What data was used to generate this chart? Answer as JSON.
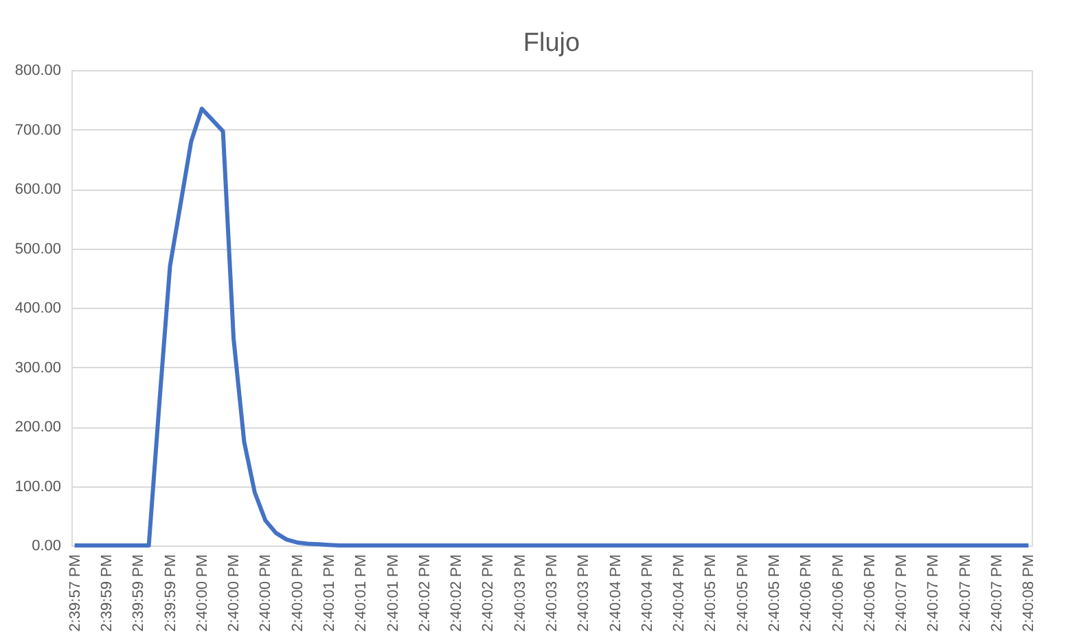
{
  "chart_data": {
    "type": "line",
    "title": "Flujo",
    "categories": [
      "2:39:57 PM",
      null,
      null,
      "2:39:59 PM",
      null,
      null,
      "2:39:59 PM",
      null,
      null,
      "2:39:59 PM",
      null,
      null,
      "2:40:00 PM",
      null,
      null,
      "2:40:00 PM",
      null,
      null,
      "2:40:00 PM",
      null,
      null,
      "2:40:00 PM",
      null,
      null,
      "2:40:01 PM",
      null,
      null,
      "2:40:01 PM",
      null,
      null,
      "2:40:01 PM",
      null,
      null,
      "2:40:02 PM",
      null,
      null,
      "2:40:02 PM",
      null,
      null,
      "2:40:02 PM",
      null,
      null,
      "2:40:03 PM",
      null,
      null,
      "2:40:03 PM",
      null,
      null,
      "2:40:03 PM",
      null,
      null,
      "2:40:04 PM",
      null,
      null,
      "2:40:04 PM",
      null,
      null,
      "2:40:04 PM",
      null,
      null,
      "2:40:05 PM",
      null,
      null,
      "2:40:05 PM",
      null,
      null,
      "2:40:05 PM",
      null,
      null,
      "2:40:06 PM",
      null,
      null,
      "2:40:06 PM",
      null,
      null,
      "2:40:06 PM",
      null,
      null,
      "2:40:07 PM",
      null,
      null,
      "2:40:07 PM",
      null,
      null,
      "2:40:07 PM",
      null,
      null,
      "2:40:07 PM",
      null,
      null,
      "2:40:08 PM"
    ],
    "series": [
      {
        "color": "#4472c4",
        "values": [
          0,
          0,
          0,
          0,
          0,
          0,
          0,
          0,
          240,
          470,
          575,
          680,
          735,
          716,
          697,
          348,
          174,
          89,
          42,
          21,
          10,
          5,
          3,
          2,
          1,
          0,
          0,
          0,
          0,
          0,
          0,
          0,
          0,
          0,
          0,
          0,
          0,
          0,
          0,
          0,
          0,
          0,
          0,
          0,
          0,
          0,
          0,
          0,
          0,
          0,
          0,
          0,
          0,
          0,
          0,
          0,
          0,
          0,
          0,
          0,
          0,
          0,
          0,
          0,
          0,
          0,
          0,
          0,
          0,
          0,
          0,
          0,
          0,
          0,
          0,
          0,
          0,
          0,
          0,
          0,
          0,
          0,
          0,
          0,
          0,
          0,
          0,
          0,
          0,
          0,
          0
        ]
      }
    ],
    "ylim": [
      0,
      800
    ],
    "yticks": [
      {
        "value": 0,
        "label": "0.00"
      },
      {
        "value": 100,
        "label": "100.00"
      },
      {
        "value": 200,
        "label": "200.00"
      },
      {
        "value": 300,
        "label": "300.00"
      },
      {
        "value": 400,
        "label": "400.00"
      },
      {
        "value": 500,
        "label": "500.00"
      },
      {
        "value": 600,
        "label": "600.00"
      },
      {
        "value": 700,
        "label": "700.00"
      },
      {
        "value": 800,
        "label": "800.00"
      }
    ],
    "grid": "y",
    "marker": "none",
    "line_style": "solid"
  }
}
